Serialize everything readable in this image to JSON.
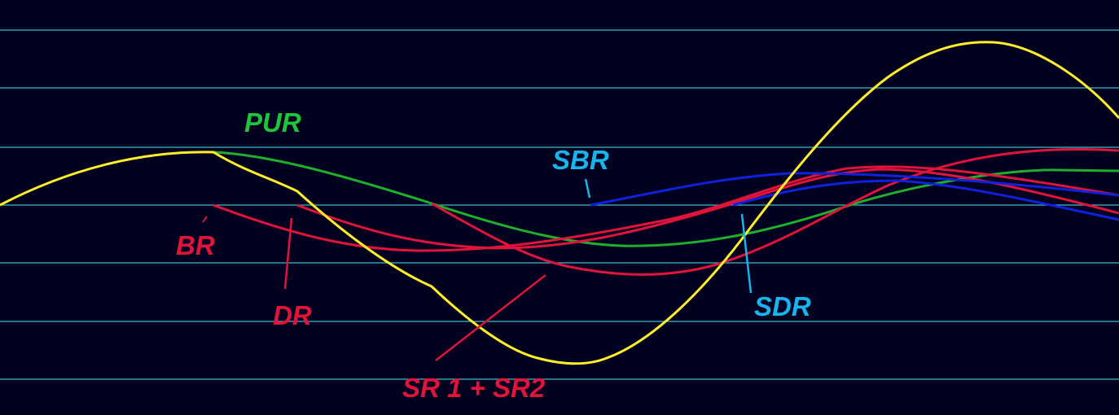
{
  "labels": {
    "pur": "PUR",
    "sbr": "SBR",
    "br": "BR",
    "dr": "DR",
    "sr": "SR 1 + SR2",
    "sdr": "SDR"
  }
}
